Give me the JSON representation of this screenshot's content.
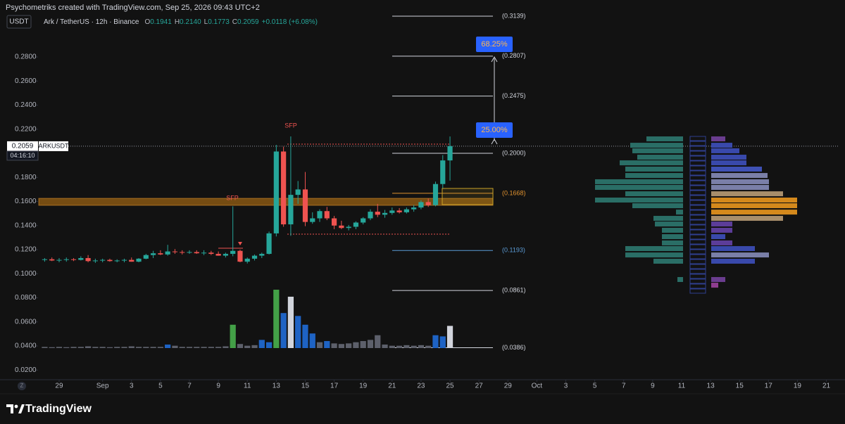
{
  "header": {
    "attribution": "Psychometriks created with TradingView.com, Sep 25, 2026 09:43 UTC+2",
    "brand": "TradingView",
    "timezone_button": "Z"
  },
  "chart_data": {
    "type": "candlestick",
    "symbol_box": "USDT",
    "symbol": "Ark / TetherUS · 12h · Binance",
    "ohlc_legend": [
      {
        "key": "O",
        "text": "0.1941"
      },
      {
        "key": "H",
        "text": "0.2140"
      },
      {
        "key": "L",
        "text": "0.1773"
      },
      {
        "key": "C",
        "text": "0.2059"
      }
    ],
    "change": "+0.0118 (+6.08%)",
    "ticker": "ARKUSDT",
    "last_price": 0.2059,
    "countdown": "04:16:10",
    "up_color": "#26a69a",
    "down_color": "#ef5350",
    "x": [
      -1,
      -0.5,
      0,
      0.5,
      1,
      1.5,
      2,
      2.5,
      3,
      3.5,
      4,
      4.5,
      5,
      5.5,
      6,
      6.5,
      7,
      7.5,
      8,
      8.5,
      9,
      9.5,
      10,
      10.5,
      11,
      11.5,
      12,
      12.5,
      13,
      13.5,
      14,
      14.5,
      15,
      15.5,
      16,
      16.5,
      17,
      17.5,
      18,
      18.5,
      19,
      19.5,
      20,
      20.5,
      21,
      21.5,
      22,
      22.5,
      23,
      23.5,
      24,
      24.5,
      25,
      25.5,
      26,
      26.5,
      27
    ],
    "open": [
      0.1115,
      0.112,
      0.111,
      0.1115,
      0.112,
      0.1115,
      0.113,
      0.1105,
      0.111,
      0.1115,
      0.1105,
      0.111,
      0.1115,
      0.11,
      0.1125,
      0.1155,
      0.117,
      0.116,
      0.1185,
      0.118,
      0.1175,
      0.118,
      0.117,
      0.1175,
      0.1165,
      0.115,
      0.1165,
      0.119,
      0.11,
      0.1125,
      0.115,
      0.1165,
      0.1335,
      0.2015,
      0.141,
      0.1655,
      0.17,
      0.143,
      0.146,
      0.152,
      0.146,
      0.14,
      0.138,
      0.139,
      0.1425,
      0.146,
      0.1515,
      0.149,
      0.1505,
      0.1525,
      0.151,
      0.1535,
      0.155,
      0.1595,
      0.157,
      0.1745,
      0.1941
    ],
    "high": [
      0.113,
      0.1135,
      0.113,
      0.1135,
      0.113,
      0.1145,
      0.1155,
      0.1125,
      0.1125,
      0.1125,
      0.112,
      0.1125,
      0.1135,
      0.113,
      0.1165,
      0.119,
      0.1195,
      0.124,
      0.1205,
      0.1195,
      0.1195,
      0.1195,
      0.1195,
      0.119,
      0.1185,
      0.1175,
      0.156,
      0.12,
      0.1135,
      0.116,
      0.1175,
      0.135,
      0.207,
      0.2055,
      0.214,
      0.177,
      0.1845,
      0.151,
      0.1535,
      0.1555,
      0.148,
      0.144,
      0.1405,
      0.1435,
      0.147,
      0.1535,
      0.158,
      0.153,
      0.155,
      0.1545,
      0.155,
      0.157,
      0.161,
      0.1625,
      0.1765,
      0.1985,
      0.214
    ],
    "low": [
      0.11,
      0.1105,
      0.1095,
      0.11,
      0.1105,
      0.111,
      0.1095,
      0.109,
      0.1095,
      0.11,
      0.1095,
      0.1095,
      0.11,
      0.1095,
      0.112,
      0.113,
      0.1155,
      0.115,
      0.1165,
      0.116,
      0.1165,
      0.1165,
      0.1155,
      0.1155,
      0.115,
      0.1135,
      0.1145,
      0.1095,
      0.1085,
      0.111,
      0.113,
      0.116,
      0.131,
      0.139,
      0.1315,
      0.158,
      0.1395,
      0.1415,
      0.143,
      0.1445,
      0.137,
      0.137,
      0.136,
      0.137,
      0.141,
      0.1445,
      0.147,
      0.1465,
      0.149,
      0.15,
      0.15,
      0.1515,
      0.1535,
      0.1555,
      0.156,
      0.171,
      0.1773
    ],
    "close": [
      0.112,
      0.111,
      0.1115,
      0.112,
      0.1115,
      0.113,
      0.1105,
      0.111,
      0.1115,
      0.1105,
      0.111,
      0.1115,
      0.11,
      0.1125,
      0.1155,
      0.117,
      0.116,
      0.1185,
      0.118,
      0.1175,
      0.118,
      0.117,
      0.1175,
      0.1165,
      0.115,
      0.1165,
      0.119,
      0.11,
      0.1125,
      0.115,
      0.1165,
      0.1335,
      0.2015,
      0.141,
      0.1655,
      0.17,
      0.143,
      0.146,
      0.152,
      0.146,
      0.14,
      0.138,
      0.139,
      0.1425,
      0.146,
      0.1515,
      0.149,
      0.1505,
      0.1525,
      0.151,
      0.1535,
      0.155,
      0.1595,
      0.157,
      0.1745,
      0.1941,
      0.2059
    ],
    "volume": [
      2,
      1.5,
      2,
      1.5,
      2,
      2,
      3,
      2,
      2,
      1.5,
      2,
      2,
      3,
      2,
      2,
      2,
      2,
      6,
      4,
      2,
      2,
      2,
      2,
      2,
      2,
      3,
      40,
      7,
      4,
      5,
      14,
      10,
      100,
      60,
      88,
      55,
      40,
      25,
      10,
      12,
      8,
      7,
      8,
      10,
      12,
      14,
      22,
      6,
      4,
      4,
      5,
      4,
      5,
      4,
      22,
      20,
      38
    ],
    "volume_colors": [
      "#5d606b",
      "#5d606b",
      "#5d606b",
      "#5d606b",
      "#5d606b",
      "#5d606b",
      "#5d606b",
      "#5d606b",
      "#5d606b",
      "#5d606b",
      "#5d606b",
      "#5d606b",
      "#5d606b",
      "#5d606b",
      "#5d606b",
      "#5d606b",
      "#5d606b",
      "#1e63c4",
      "#5d606b",
      "#5d606b",
      "#5d606b",
      "#5d606b",
      "#5d606b",
      "#5d606b",
      "#5d606b",
      "#5d606b",
      "#43a047",
      "#5d606b",
      "#5d606b",
      "#5d606b",
      "#1e63c4",
      "#1e63c4",
      "#43a047",
      "#1e63c4",
      "#d1d4dc",
      "#1e63c4",
      "#1e63c4",
      "#1e63c4",
      "#5d606b",
      "#1e63c4",
      "#5d606b",
      "#5d606b",
      "#5d606b",
      "#5d606b",
      "#5d606b",
      "#5d606b",
      "#5d606b",
      "#5d606b",
      "#5d606b",
      "#5d606b",
      "#5d606b",
      "#5d606b",
      "#5d606b",
      "#5d606b",
      "#1e63c4",
      "#1e63c4",
      "#d1d4dc"
    ],
    "xlim": [
      -1.41,
      53.8
    ],
    "ylim": [
      0.012,
      0.3168
    ],
    "xticks": [
      {
        "value": 0,
        "label": "29"
      },
      {
        "value": 3,
        "label": "Sep"
      },
      {
        "value": 5,
        "label": "3"
      },
      {
        "value": 7,
        "label": "5"
      },
      {
        "value": 9,
        "label": "7"
      },
      {
        "value": 11,
        "label": "9"
      },
      {
        "value": 13,
        "label": "11"
      },
      {
        "value": 15,
        "label": "13"
      },
      {
        "value": 17,
        "label": "15"
      },
      {
        "value": 19,
        "label": "17"
      },
      {
        "value": 21,
        "label": "19"
      },
      {
        "value": 23,
        "label": "21"
      },
      {
        "value": 25,
        "label": "23"
      },
      {
        "value": 27,
        "label": "25"
      },
      {
        "value": 29,
        "label": "27"
      },
      {
        "value": 31,
        "label": "29"
      },
      {
        "value": 33,
        "label": "Oct"
      },
      {
        "value": 35,
        "label": "3"
      },
      {
        "value": 37,
        "label": "5"
      },
      {
        "value": 39,
        "label": "7"
      },
      {
        "value": 41,
        "label": "9"
      },
      {
        "value": 43,
        "label": "11"
      },
      {
        "value": 45,
        "label": "13"
      },
      {
        "value": 47,
        "label": "15"
      },
      {
        "value": 49,
        "label": "17"
      },
      {
        "value": 51,
        "label": "19"
      },
      {
        "value": 53,
        "label": "21"
      }
    ],
    "yticks": [
      {
        "value": 0.28,
        "label": "0.2800"
      },
      {
        "value": 0.26,
        "label": "0.2600"
      },
      {
        "value": 0.24,
        "label": "0.2400"
      },
      {
        "value": 0.22,
        "label": "0.2200"
      },
      {
        "value": 0.18,
        "label": "0.1800"
      },
      {
        "value": 0.16,
        "label": "0.1600"
      },
      {
        "value": 0.14,
        "label": "0.1400"
      },
      {
        "value": 0.12,
        "label": "0.1200"
      },
      {
        "value": 0.1,
        "label": "0.1000"
      },
      {
        "value": 0.08,
        "label": "0.0800"
      },
      {
        "value": 0.06,
        "label": "0.0600"
      },
      {
        "value": 0.04,
        "label": "0.0400"
      },
      {
        "value": 0.02,
        "label": "0.0200"
      }
    ],
    "zone": [
      0.1568,
      0.1626
    ],
    "zone_color": "#c77c12",
    "fib_levels": [
      {
        "value": 0.3139,
        "label": "(0.3139)",
        "color": "#d1d4dc"
      },
      {
        "value": 0.2807,
        "label": "(0.2807)",
        "color": "#d1d4dc"
      },
      {
        "value": 0.2475,
        "label": "(0.2475)",
        "color": "#d1d4dc"
      },
      {
        "value": 0.2,
        "label": "(0.2000)",
        "color": "#d1d4dc"
      },
      {
        "value": 0.1668,
        "label": "(0.1668)",
        "color": "#e0922f"
      },
      {
        "value": 0.1193,
        "label": "(0.1193)",
        "color": "#5b9bd5"
      },
      {
        "value": 0.0861,
        "label": "(0.0861)",
        "color": "#d1d4dc"
      },
      {
        "value": 0.0386,
        "label": "(0.0386)",
        "color": "#d1d4dc"
      }
    ],
    "annotations": [
      "SFP",
      "SFP"
    ],
    "measure_labels": [
      "68.25%",
      "25.00%"
    ],
    "profile": {
      "prices": [
        0.2117,
        0.2064,
        0.2018,
        0.1965,
        0.1918,
        0.1866,
        0.1813,
        0.1761,
        0.1714,
        0.1661,
        0.1609,
        0.1562,
        0.1509,
        0.1457,
        0.141,
        0.1358,
        0.1305,
        0.1253,
        0.1206,
        0.1153,
        0.1101,
        0.1054,
        0.1001,
        0.0949,
        0.0902
      ],
      "left": [
        52,
        75,
        72,
        65,
        90,
        82,
        82,
        125,
        125,
        82,
        125,
        72,
        10,
        42,
        40,
        30,
        30,
        30,
        82,
        82,
        42,
        0,
        0,
        8,
        0
      ],
      "right": [
        20,
        30,
        40,
        50,
        50,
        72,
        80,
        82,
        82,
        102,
        122,
        122,
        122,
        102,
        30,
        30,
        20,
        30,
        62,
        82,
        62,
        0,
        0,
        20,
        10
      ],
      "left_color": "#2a6e66",
      "right_colors": [
        "#6a3d8f",
        "#3949ab",
        "#3949ab",
        "#3949ab",
        "#3949ab",
        "#3f51b5",
        "#7a7fa8",
        "#7a7fa8",
        "#7a7fa8",
        "#a88e6b",
        "#d4891c",
        "#d4891c",
        "#d4891c",
        "#a88e6b",
        "#5c3d99",
        "#5c3d99",
        "#3949ab",
        "#5c3d99",
        "#3949ab",
        "#7a7fa8",
        "#3949ab",
        "#3949ab",
        "#3949ab",
        "#6a3d8f",
        "#8e3d8f"
      ]
    }
  }
}
